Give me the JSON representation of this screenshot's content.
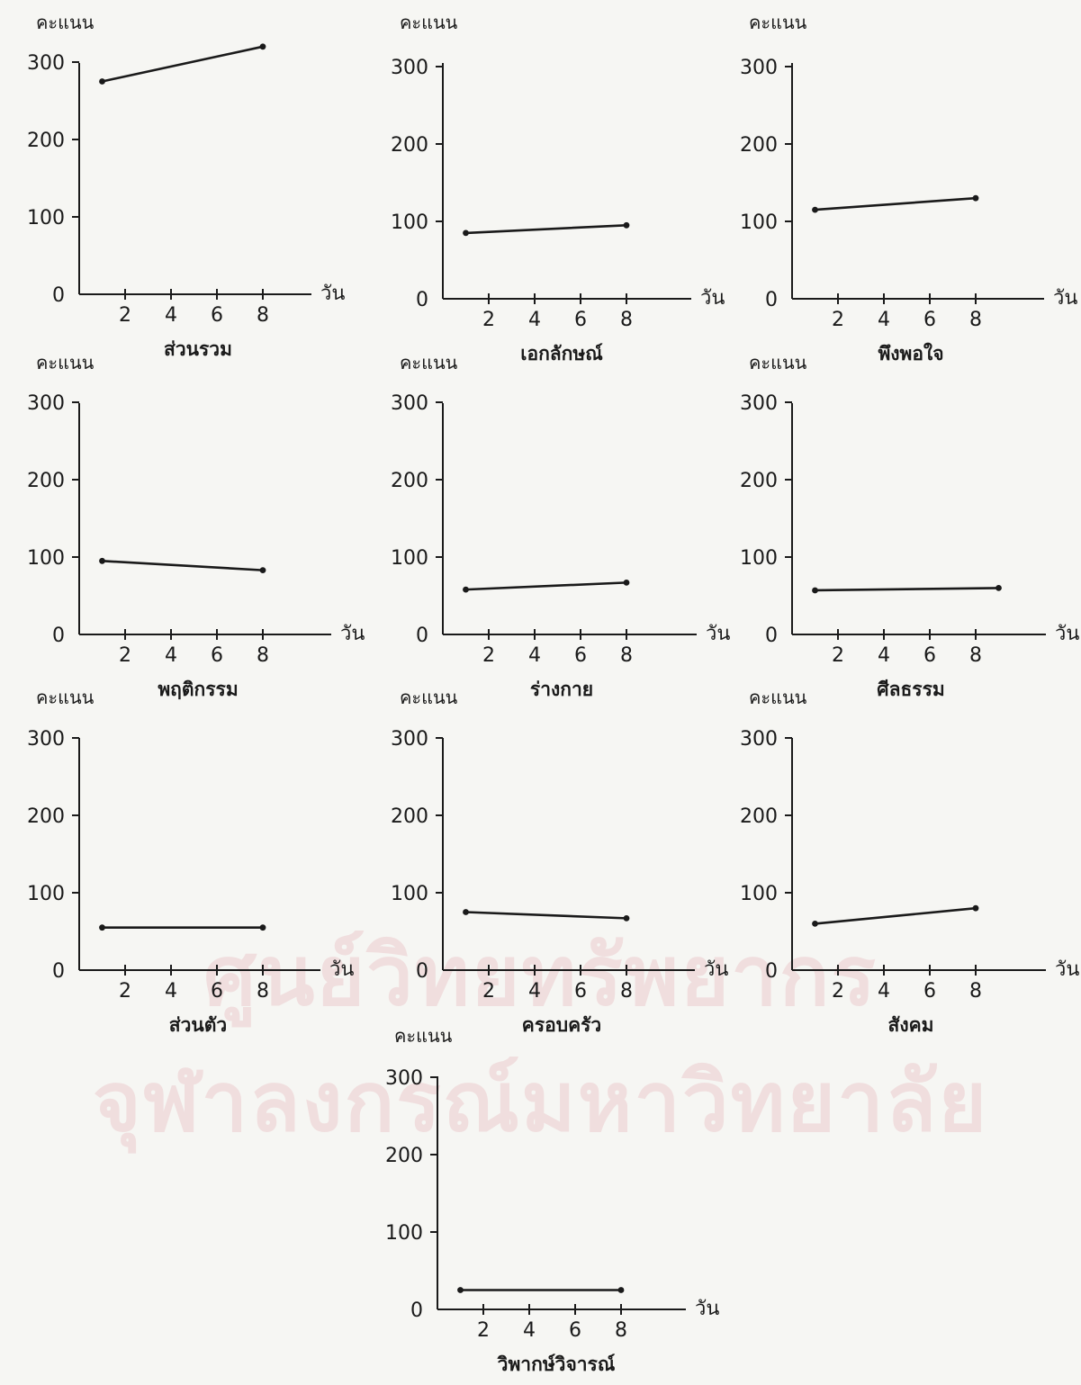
{
  "colors": {
    "ink": "#1a1a1a",
    "paper": "#f6f6f3",
    "watermark": "#f0dede"
  },
  "watermark": {
    "line1": "ศูนย์วิทยทรัพยากร",
    "line2": "จุฬาลงกรณ์มหาวิทยาลัย"
  },
  "chart_data": [
    {
      "type": "line",
      "ylabel": "คะแนน",
      "xlabel": "วัน",
      "title": "ส่วนรวม",
      "y_ticks": [
        0,
        100,
        200,
        300
      ],
      "x_ticks": [
        2,
        4,
        6,
        8
      ],
      "ylim": [
        0,
        320
      ],
      "xlim": [
        0,
        12
      ],
      "series": [
        {
          "x": [
            1,
            8
          ],
          "values": [
            275,
            320
          ]
        }
      ]
    },
    {
      "type": "line",
      "ylabel": "คะแนน",
      "xlabel": "วัน",
      "title": "เอกลักษณ์",
      "y_ticks": [
        0,
        100,
        200,
        300
      ],
      "x_ticks": [
        2,
        4,
        6,
        8
      ],
      "ylim": [
        0,
        320
      ],
      "xlim": [
        0,
        12
      ],
      "series": [
        {
          "x": [
            1,
            8
          ],
          "values": [
            85,
            95
          ]
        }
      ]
    },
    {
      "type": "line",
      "ylabel": "คะแนน",
      "xlabel": "วัน",
      "title": "พึงพอใจ",
      "y_ticks": [
        0,
        100,
        200,
        300
      ],
      "x_ticks": [
        2,
        4,
        6,
        8
      ],
      "ylim": [
        0,
        320
      ],
      "xlim": [
        0,
        12
      ],
      "series": [
        {
          "x": [
            1,
            8
          ],
          "values": [
            115,
            130
          ]
        }
      ]
    },
    {
      "type": "line",
      "ylabel": "คะแนน",
      "xlabel": "วัน",
      "title": "พฤติกรรม",
      "y_ticks": [
        0,
        100,
        200,
        300
      ],
      "x_ticks": [
        2,
        4,
        6,
        8
      ],
      "ylim": [
        0,
        320
      ],
      "xlim": [
        0,
        12
      ],
      "series": [
        {
          "x": [
            1,
            8
          ],
          "values": [
            95,
            83
          ]
        }
      ]
    },
    {
      "type": "line",
      "ylabel": "คะแนน",
      "xlabel": "วัน",
      "title": "ร่างกาย",
      "y_ticks": [
        0,
        100,
        200,
        300
      ],
      "x_ticks": [
        2,
        4,
        6,
        8
      ],
      "ylim": [
        0,
        320
      ],
      "xlim": [
        0,
        12
      ],
      "series": [
        {
          "x": [
            1,
            8
          ],
          "values": [
            58,
            67
          ]
        }
      ]
    },
    {
      "type": "line",
      "ylabel": "คะแนน",
      "xlabel": "วัน",
      "title": "ศีลธรรม",
      "y_ticks": [
        0,
        100,
        200,
        300
      ],
      "x_ticks": [
        2,
        4,
        6,
        8
      ],
      "ylim": [
        0,
        320
      ],
      "xlim": [
        0,
        12
      ],
      "series": [
        {
          "x": [
            1,
            9
          ],
          "values": [
            57,
            60
          ]
        }
      ]
    },
    {
      "type": "line",
      "ylabel": "คะแนน",
      "xlabel": "วัน",
      "title": "ส่วนตัว",
      "y_ticks": [
        0,
        100,
        200,
        300
      ],
      "x_ticks": [
        2,
        4,
        6,
        8
      ],
      "ylim": [
        0,
        320
      ],
      "xlim": [
        0,
        12
      ],
      "series": [
        {
          "x": [
            1,
            8
          ],
          "values": [
            55,
            55
          ]
        }
      ]
    },
    {
      "type": "line",
      "ylabel": "คะแนน",
      "xlabel": "วัน",
      "title": "ครอบครัว",
      "y_ticks": [
        0,
        100,
        200,
        300
      ],
      "x_ticks": [
        2,
        4,
        6,
        8
      ],
      "ylim": [
        0,
        320
      ],
      "xlim": [
        0,
        12
      ],
      "series": [
        {
          "x": [
            1,
            8
          ],
          "values": [
            75,
            67
          ]
        }
      ]
    },
    {
      "type": "line",
      "ylabel": "คะแนน",
      "xlabel": "วัน",
      "title": "สังคม",
      "y_ticks": [
        0,
        100,
        200,
        300
      ],
      "x_ticks": [
        2,
        4,
        6,
        8
      ],
      "ylim": [
        0,
        320
      ],
      "xlim": [
        0,
        12
      ],
      "series": [
        {
          "x": [
            1,
            8
          ],
          "values": [
            60,
            80
          ]
        }
      ]
    },
    {
      "type": "line",
      "ylabel": "คะแนน",
      "xlabel": "วัน",
      "title": "วิพากษ์วิจารณ์",
      "y_ticks": [
        0,
        100,
        200,
        300
      ],
      "x_ticks": [
        2,
        4,
        6,
        8
      ],
      "ylim": [
        0,
        320
      ],
      "xlim": [
        0,
        12
      ],
      "series": [
        {
          "x": [
            1,
            8
          ],
          "values": [
            25,
            25
          ]
        }
      ]
    }
  ]
}
